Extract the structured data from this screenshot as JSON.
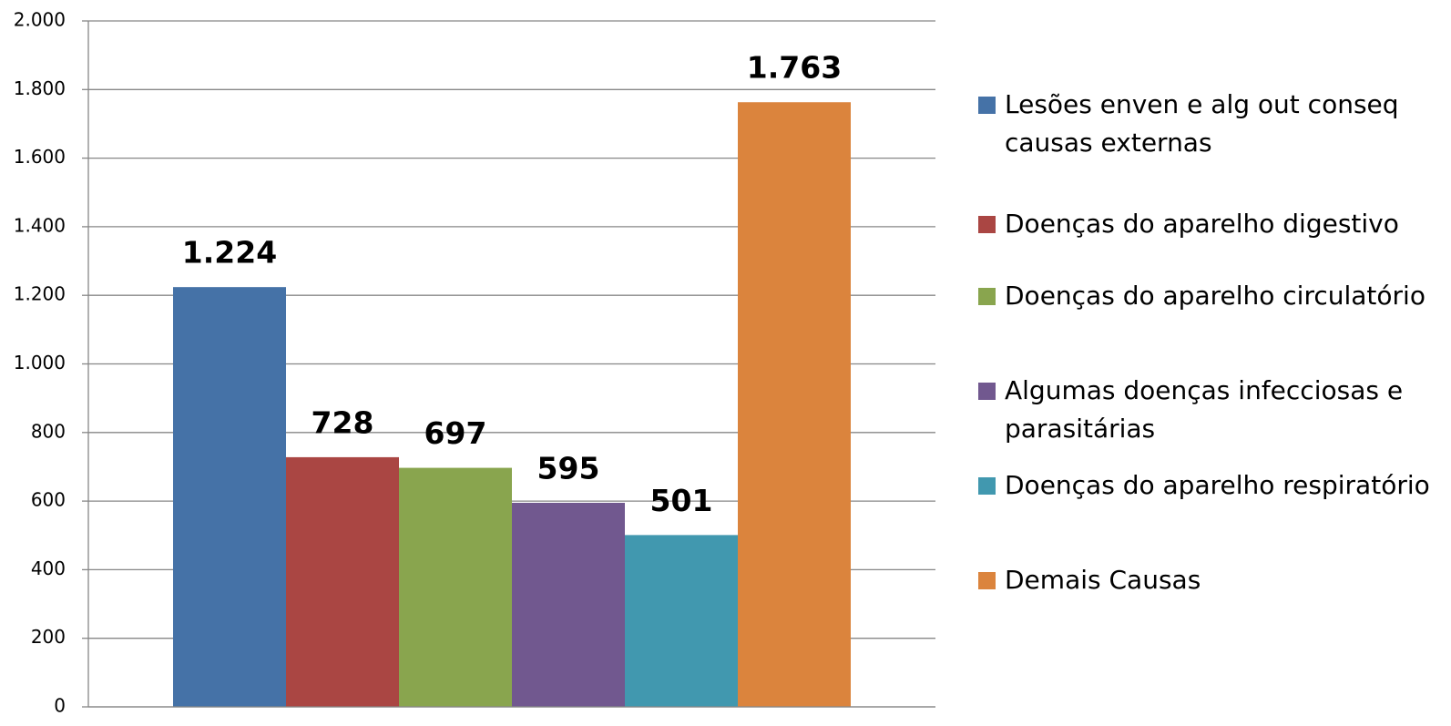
{
  "chart_data": {
    "type": "bar",
    "series": [
      {
        "name": "Lesões enven e alg out conseq causas externas",
        "color": "#4572a7",
        "values": [
          1224
        ],
        "value_labels": [
          "1.224"
        ]
      },
      {
        "name": "Doenças do aparelho digestivo",
        "color": "#aa4643",
        "values": [
          728
        ]
      },
      {
        "name": "Doenças do aparelho circulatório",
        "color": "#89a54e",
        "values": [
          697
        ]
      },
      {
        "name": "Algumas doenças infecciosas e parasitárias",
        "color": "#71588f",
        "values": [
          595
        ]
      },
      {
        "name": "Doenças do aparelho respiratório",
        "color": "#4198af",
        "values": [
          501
        ]
      },
      {
        "name": "Demais Causas",
        "color": "#db843d",
        "values": [
          1763
        ],
        "value_labels": [
          "1.763"
        ]
      }
    ],
    "ylim": [
      0,
      2000
    ],
    "yticks": [
      0,
      200,
      400,
      600,
      800,
      {
        "value": 1000,
        "label": "1.000"
      },
      {
        "value": 1200,
        "label": "1.200"
      },
      {
        "value": 1400,
        "label": "1.400"
      },
      {
        "value": 1600,
        "label": "1.600"
      },
      {
        "value": 1800,
        "label": "1.800"
      },
      {
        "value": 2000,
        "label": "2.000"
      }
    ],
    "grid": true,
    "legend": "right"
  }
}
